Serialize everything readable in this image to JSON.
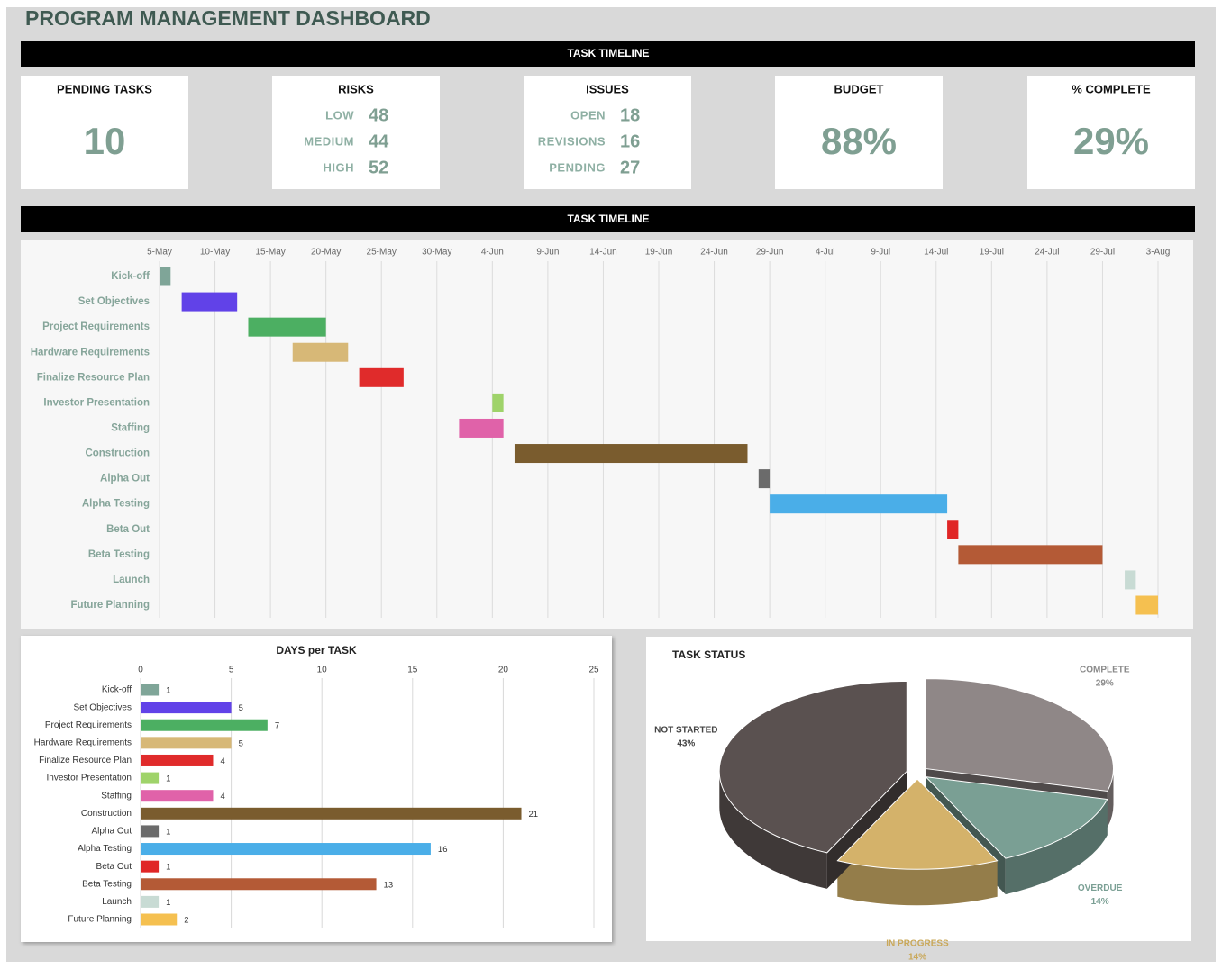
{
  "title": "PROGRAM MANAGEMENT DASHBOARD",
  "header_top": "TASK TIMELINE",
  "header_middle": "TASK TIMELINE",
  "kpis": [
    {
      "label": "PENDING TASKS",
      "value": 10
    },
    {
      "label": "RISKS",
      "items": [
        {
          "label": "LOW",
          "value": 48
        },
        {
          "label": "MEDIUM",
          "value": 44
        },
        {
          "label": "HIGH",
          "value": 52
        }
      ]
    },
    {
      "label": "ISSUES",
      "items": [
        {
          "label": "OPEN",
          "value": 18
        },
        {
          "label": "REVISIONS",
          "value": 16
        },
        {
          "label": "PENDING",
          "value": 27
        }
      ]
    },
    {
      "label": "BUDGET",
      "value": "88%"
    },
    {
      "label": "% COMPLETE",
      "value": "29%"
    }
  ],
  "chart_data": [
    {
      "type": "gantt",
      "categories": [
        "Kick-off",
        "Set Objectives",
        "Project Requirements",
        "Hardware Requirements",
        "Finalize Resource Plan",
        "Investor Presentation",
        "Staffing",
        "Construction",
        "Alpha Out",
        "Alpha Testing",
        "Beta Out",
        "Beta Testing",
        "Launch",
        "Future Planning"
      ],
      "starts": [
        "5-May",
        "7-May",
        "13-May",
        "17-May",
        "23-May",
        "4-Jun",
        "1-Jun",
        "6-Jun",
        "28-Jun",
        "29-Jun",
        "15-Jul",
        "16-Jul",
        "31-Jul",
        "1-Aug"
      ],
      "durations": [
        1,
        5,
        7,
        5,
        4,
        1,
        4,
        21,
        1,
        16,
        1,
        13,
        1,
        2
      ],
      "colors": [
        "#7fa598",
        "#6142e8",
        "#4caf62",
        "#d7b877",
        "#e02b2b",
        "#9fd36a",
        "#e062a9",
        "#7a5c2e",
        "#6b6b6b",
        "#4aaee8",
        "#e02626",
        "#b45a36",
        "#c8dbd4",
        "#f5c050"
      ],
      "xlim": [
        "5-May",
        "3-Aug"
      ],
      "xticks": [
        "5-May",
        "10-May",
        "15-May",
        "20-May",
        "25-May",
        "30-May",
        "4-Jun",
        "9-Jun",
        "14-Jun",
        "19-Jun",
        "24-Jun",
        "29-Jun",
        "4-Jul",
        "9-Jul",
        "14-Jul",
        "19-Jul",
        "24-Jul",
        "29-Jul",
        "3-Aug"
      ],
      "grid": true
    },
    {
      "type": "barh",
      "title": "DAYS per TASK",
      "categories": [
        "Kick-off",
        "Set Objectives",
        "Project Requirements",
        "Hardware Requirements",
        "Finalize Resource Plan",
        "Investor Presentation",
        "Staffing",
        "Construction",
        "Alpha Out",
        "Alpha Testing",
        "Beta Out",
        "Beta Testing",
        "Launch",
        "Future Planning"
      ],
      "values": [
        1,
        5,
        7,
        5,
        4,
        1,
        4,
        21,
        1,
        16,
        1,
        13,
        1,
        2
      ],
      "colors": [
        "#7fa598",
        "#6142e8",
        "#4caf62",
        "#d7b877",
        "#e02b2b",
        "#9fd36a",
        "#e062a9",
        "#7a5c2e",
        "#6b6b6b",
        "#4aaee8",
        "#e02626",
        "#b45a36",
        "#c8dbd4",
        "#f5c050"
      ],
      "xlim": [
        0,
        25
      ],
      "xticks": [
        0,
        5,
        10,
        15,
        20,
        25
      ],
      "grid": true
    },
    {
      "type": "pie3d",
      "title": "TASK STATUS",
      "categories": [
        "COMPLETE",
        "OVERDUE",
        "IN PROGRESS",
        "NOT STARTED"
      ],
      "values": [
        29,
        14,
        14,
        43
      ],
      "value_labels": [
        "29%",
        "14%",
        "14%",
        "43%"
      ],
      "colors": [
        "#8f8787",
        "#7a9f94",
        "#d4b26a",
        "#5a5150"
      ],
      "label_colors": [
        "#8a8a8a",
        "#7a9f94",
        "#c9a85a",
        "#444444"
      ]
    }
  ]
}
